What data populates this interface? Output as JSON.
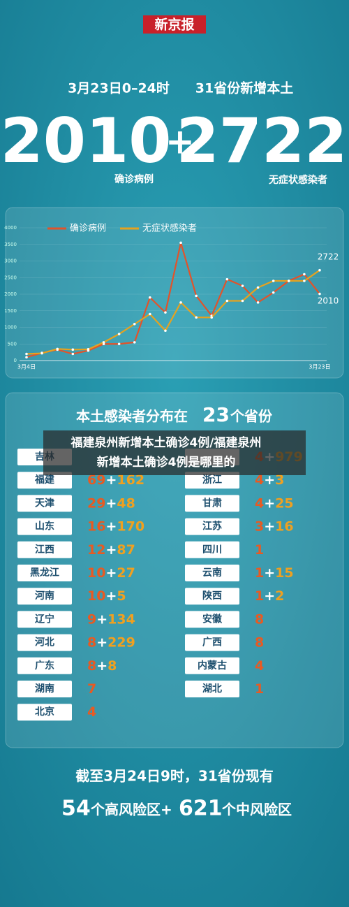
{
  "logo": "新京报",
  "headline": {
    "date": "3月23日0–24时",
    "subject": "31省份新增本土",
    "confirmed": "2010",
    "plus": "+",
    "asymptomatic": "2722",
    "confirmed_label": "确诊病例",
    "asymptomatic_label": "无症状感染者"
  },
  "chart_data": {
    "type": "line",
    "categories": [
      "3月4日",
      null,
      null,
      null,
      null,
      null,
      null,
      null,
      null,
      null,
      null,
      null,
      null,
      null,
      null,
      null,
      null,
      null,
      null,
      "3月23日"
    ],
    "series": [
      {
        "name": "确诊病例",
        "color": "#e2532a",
        "values": [
          100,
          230,
          330,
          200,
          300,
          500,
          500,
          550,
          1900,
          1450,
          3550,
          1950,
          1350,
          2450,
          2250,
          1750,
          2050,
          2400,
          2600,
          2010
        ]
      },
      {
        "name": "无症状感染者",
        "color": "#e6a21f",
        "values": [
          200,
          220,
          350,
          330,
          340,
          550,
          800,
          1100,
          1400,
          900,
          1750,
          1300,
          1300,
          1800,
          1800,
          2200,
          2400,
          2400,
          2400,
          2722
        ]
      }
    ],
    "ylim": [
      0,
      4000
    ],
    "yticks": [
      0,
      500,
      1000,
      1500,
      2000,
      2500,
      3000,
      3500,
      4000
    ],
    "grid": true,
    "legend": "top"
  },
  "table": {
    "title": [
      "本土感染者分布在",
      "23",
      "个省份"
    ],
    "left": [
      {
        "name": "吉林"
      },
      {
        "name": "福建",
        "value": "69+162"
      },
      {
        "name": "天津",
        "value": "29+48"
      },
      {
        "name": "山东",
        "value": "16+170"
      },
      {
        "name": "江西",
        "value": "12+87"
      },
      {
        "name": "黑龙江",
        "value": "10+27"
      },
      {
        "name": "河南",
        "value": "10+5"
      },
      {
        "name": "辽宁",
        "value": "9+134"
      },
      {
        "name": "河北",
        "value": "8+229"
      },
      {
        "name": "广东",
        "value": "8+8"
      },
      {
        "name": "湖南",
        "value": "7"
      },
      {
        "name": "北京",
        "value": "4"
      }
    ],
    "right": [
      {
        "value": "4+979"
      },
      {
        "name": "浙江",
        "value": "4+3"
      },
      {
        "name": "甘肃",
        "value": "4+25"
      },
      {
        "name": "江苏",
        "value": "3+16"
      },
      {
        "name": "四川",
        "value": "1"
      },
      {
        "name": "云南",
        "value": "1+15"
      },
      {
        "name": "陕西",
        "value": "1+2"
      },
      {
        "name": "安徽",
        "value": "8"
      },
      {
        "name": "广西",
        "value": "8"
      },
      {
        "name": "内蒙古",
        "value": "4"
      },
      {
        "name": "湖北",
        "value": "1"
      }
    ]
  },
  "footer": {
    "line1": "截至3月24日9时，31省份现有",
    "high": "54",
    "high_text": "个高风险区+",
    "mid": "621",
    "mid_text": "个中风险区"
  },
  "overlay": [
    "福建泉州新增本土确诊4例/福建泉州",
    "新增本土确诊4例是哪里的"
  ]
}
